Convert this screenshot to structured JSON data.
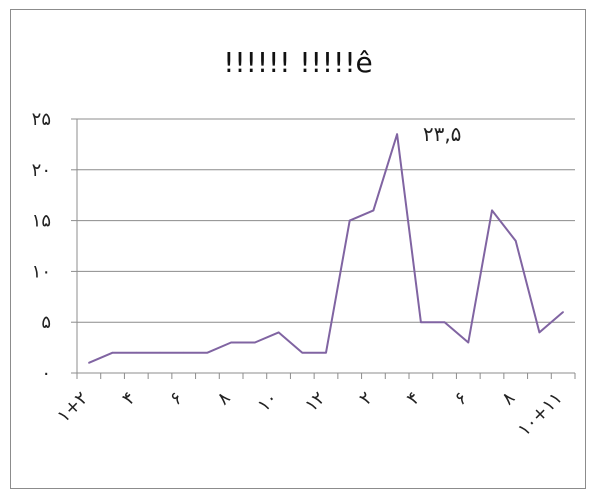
{
  "chart_data": {
    "type": "line",
    "title": "!!!!!! !!!!!ê",
    "xlabel": "",
    "ylabel": "",
    "ylim": [
      0,
      25
    ],
    "yticks": [
      "۰",
      "۵",
      "۱۰",
      "۱۵",
      "۲۰",
      "۲۵"
    ],
    "ytick_values": [
      0,
      5,
      10,
      15,
      20,
      25
    ],
    "x_tick_labels": [
      "۱+۲",
      "۴",
      "۶",
      "۸",
      "۱۰",
      "۱۲",
      "۲",
      "۴",
      "۶",
      "۸",
      "۱۰+۱۱"
    ],
    "x_tick_indices": [
      0,
      2,
      4,
      6,
      8,
      10,
      12,
      14,
      16,
      18,
      20
    ],
    "grid": true,
    "series": [
      {
        "color": "#8064a2",
        "values": [
          1,
          2,
          2,
          2,
          2,
          2,
          3,
          3,
          4,
          2,
          2,
          15,
          16,
          23.5,
          5,
          5,
          3,
          16,
          13,
          4,
          6
        ]
      }
    ],
    "annotations": [
      {
        "text": "۲۳,۵",
        "index": 13
      }
    ]
  }
}
